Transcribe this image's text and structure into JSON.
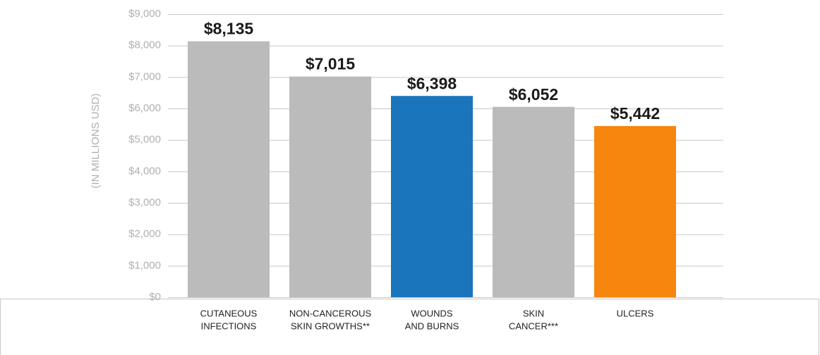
{
  "chart_data": {
    "type": "bar",
    "y_label": "(IN MILLIONS USD)",
    "categories": [
      [
        "CUTANEOUS",
        "INFECTIONS"
      ],
      [
        "NON-CANCEROUS",
        "SKIN GROWTHS**"
      ],
      [
        "WOUNDS",
        "AND BURNS"
      ],
      [
        "SKIN",
        "CANCER***"
      ],
      [
        "ULCERS"
      ]
    ],
    "values": [
      8135,
      7015,
      6398,
      6052,
      5442
    ],
    "value_labels": [
      "$8,135",
      "$7,015",
      "$6,398",
      "$6,052",
      "$5,442"
    ],
    "colors": [
      "#bcbbbb",
      "#bcbbbb",
      "#1a75bc",
      "#bcbbbb",
      "#f7860f"
    ],
    "ylim": [
      0,
      9000
    ],
    "yticks": [
      {
        "value": 0,
        "label": "$0"
      },
      {
        "value": 1000,
        "label": "$1,000"
      },
      {
        "value": 2000,
        "label": "$2,000"
      },
      {
        "value": 3000,
        "label": "$3,000"
      },
      {
        "value": 4000,
        "label": "$4,000"
      },
      {
        "value": 5000,
        "label": "$5,000"
      },
      {
        "value": 6000,
        "label": "$6,000"
      },
      {
        "value": 7000,
        "label": "$7,000"
      },
      {
        "value": 8000,
        "label": "$8,000"
      },
      {
        "value": 9000,
        "label": "$9,000"
      }
    ],
    "grid": true
  }
}
